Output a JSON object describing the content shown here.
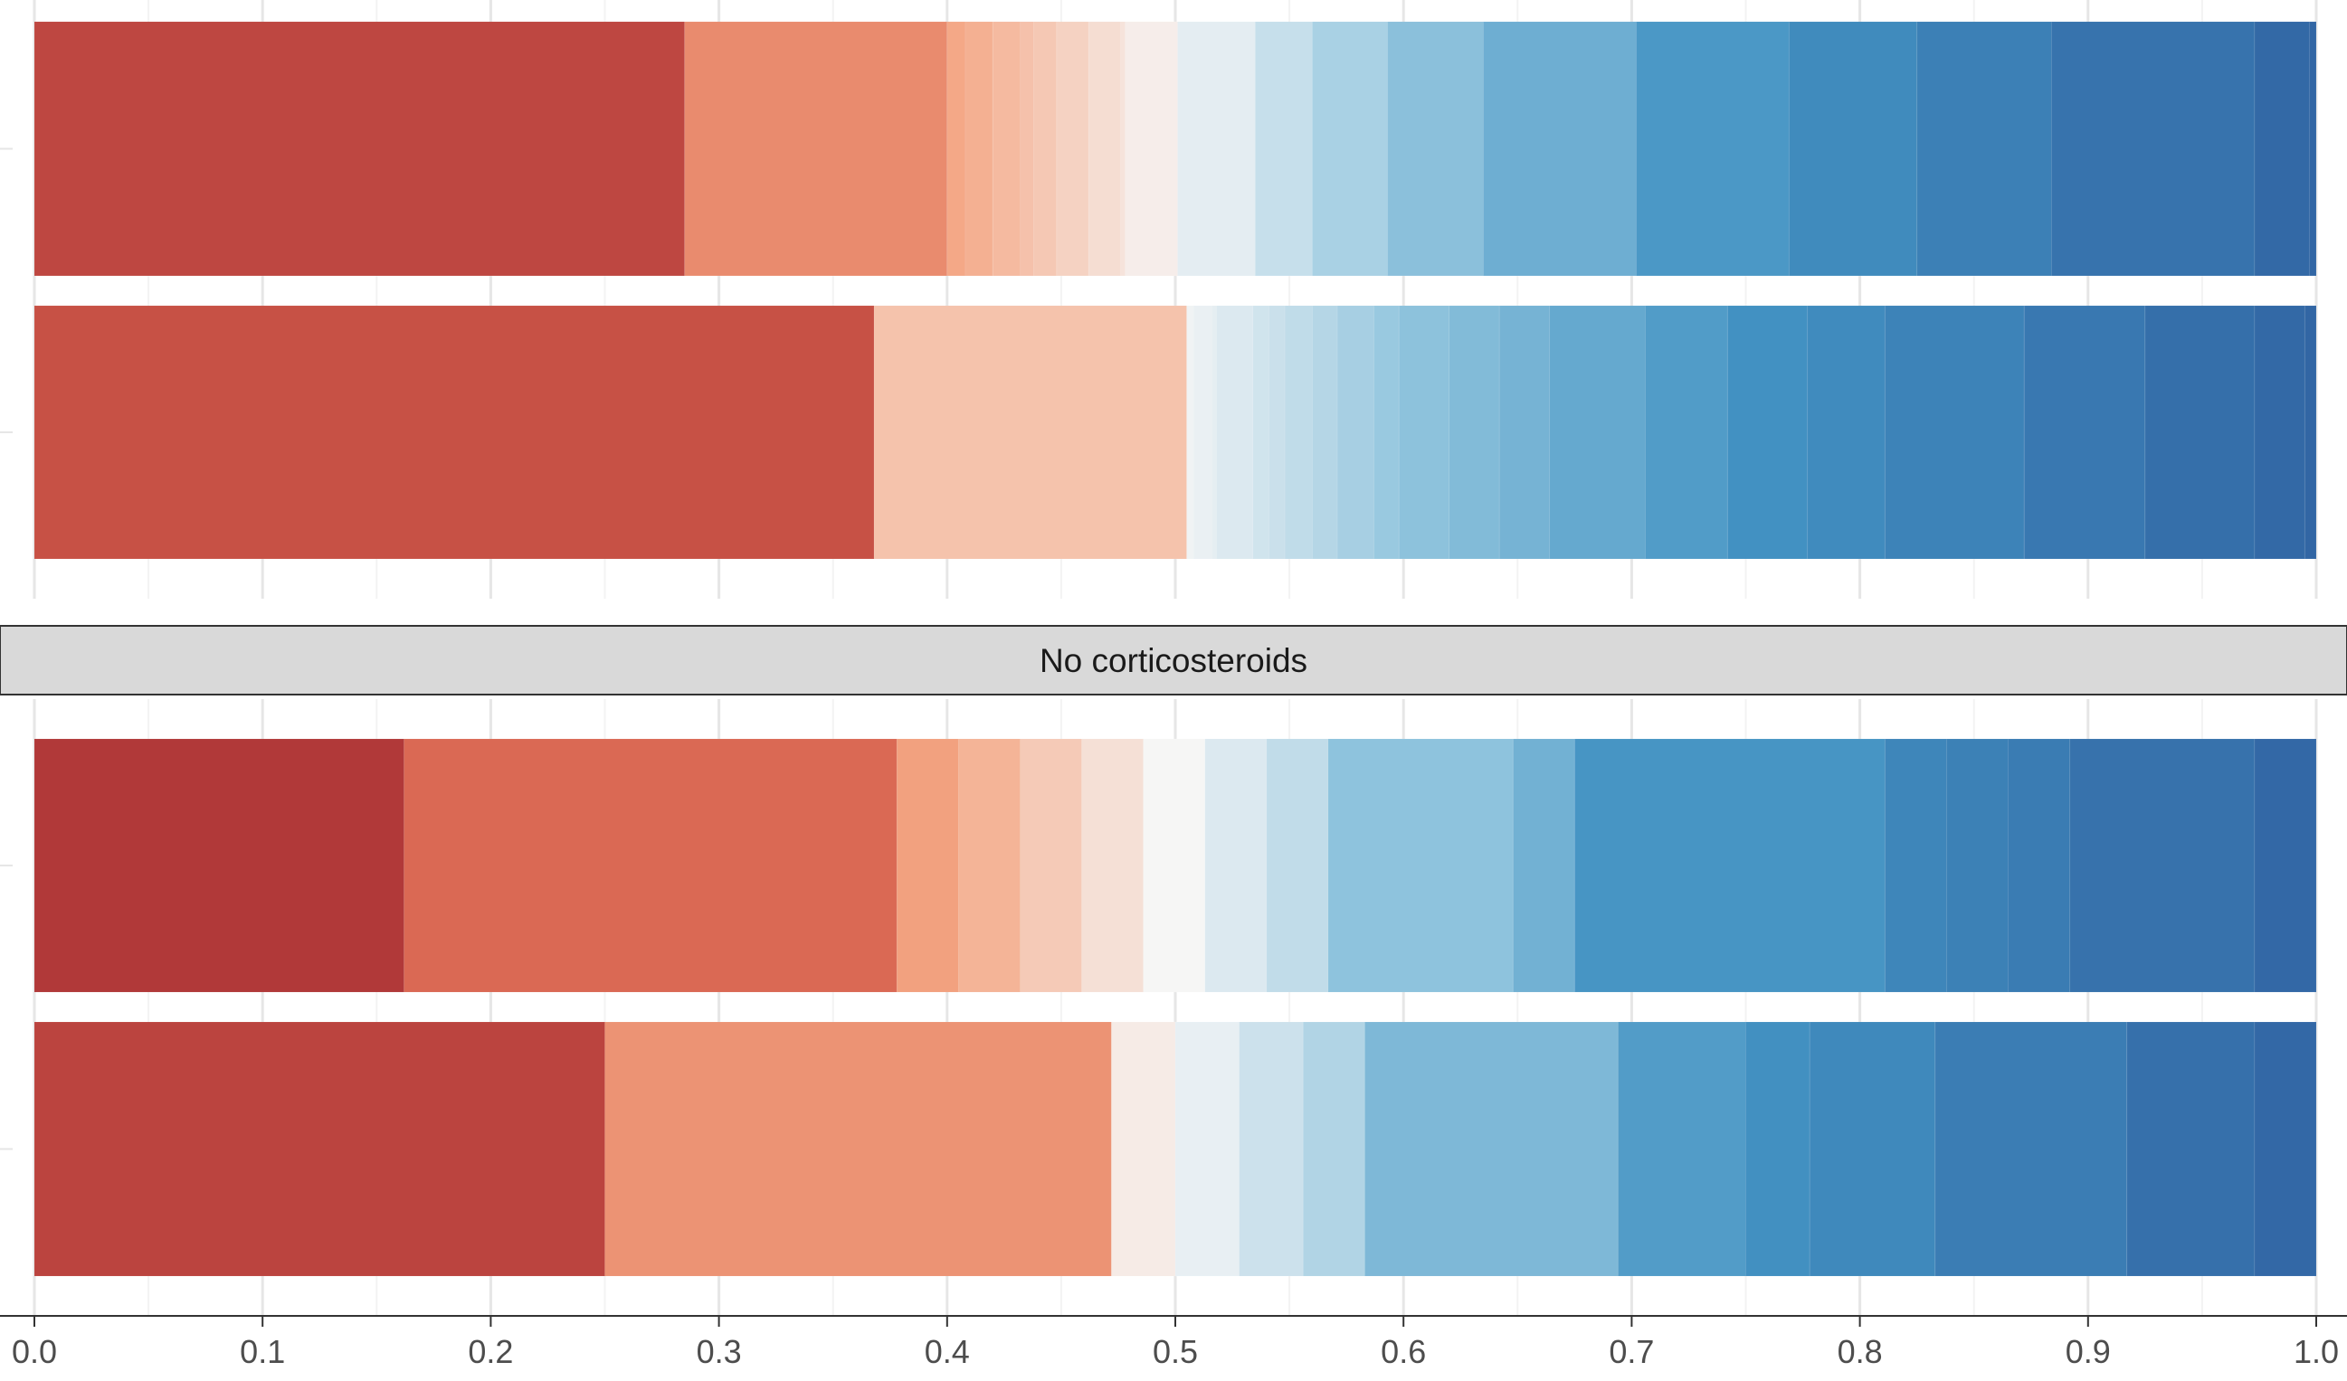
{
  "chart_data": {
    "type": "bar",
    "orientation": "horizontal",
    "stacked": true,
    "xlim": [
      0,
      1
    ],
    "grid": true,
    "legend": "none",
    "x_ticks": [
      "0.0",
      "0.1",
      "0.2",
      "0.3",
      "0.4",
      "0.5",
      "0.6",
      "0.7",
      "0.8",
      "0.9",
      "1.0"
    ],
    "panels": [
      {
        "strip_label": "",
        "bars": [
          {
            "boundaries": [
              0,
              0.285,
              0.4,
              0.408,
              0.42,
              0.432,
              0.438,
              0.448,
              0.462,
              0.476,
              0.478,
              0.501,
              0.535,
              0.56,
              0.593,
              0.635,
              0.702,
              0.769,
              0.825,
              0.884,
              0.973,
              0.997,
              1.0
            ]
          },
          {
            "boundaries": [
              0,
              0.368,
              0.505,
              0.508,
              0.516,
              0.518,
              0.534,
              0.541,
              0.548,
              0.56,
              0.571,
              0.587,
              0.598,
              0.62,
              0.642,
              0.664,
              0.706,
              0.742,
              0.777,
              0.811,
              0.872,
              0.925,
              0.973,
              0.995,
              1.0
            ]
          }
        ]
      },
      {
        "strip_label": "No corticosteroids",
        "bars": [
          {
            "boundaries": [
              0,
              0.162,
              0.378,
              0.405,
              0.432,
              0.459,
              0.486,
              0.513,
              0.54,
              0.567,
              0.648,
              0.675,
              0.811,
              0.838,
              0.865,
              0.892,
              0.973,
              1.0
            ]
          },
          {
            "boundaries": [
              0,
              0.25,
              0.472,
              0.5,
              0.528,
              0.556,
              0.583,
              0.694,
              0.75,
              0.778,
              0.833,
              0.917,
              0.973,
              1.0
            ]
          }
        ]
      }
    ],
    "colors": {
      "palette_start": "#9f2730",
      "palette_mid": "#f6f6f6",
      "palette_end": "#3266a4"
    }
  }
}
